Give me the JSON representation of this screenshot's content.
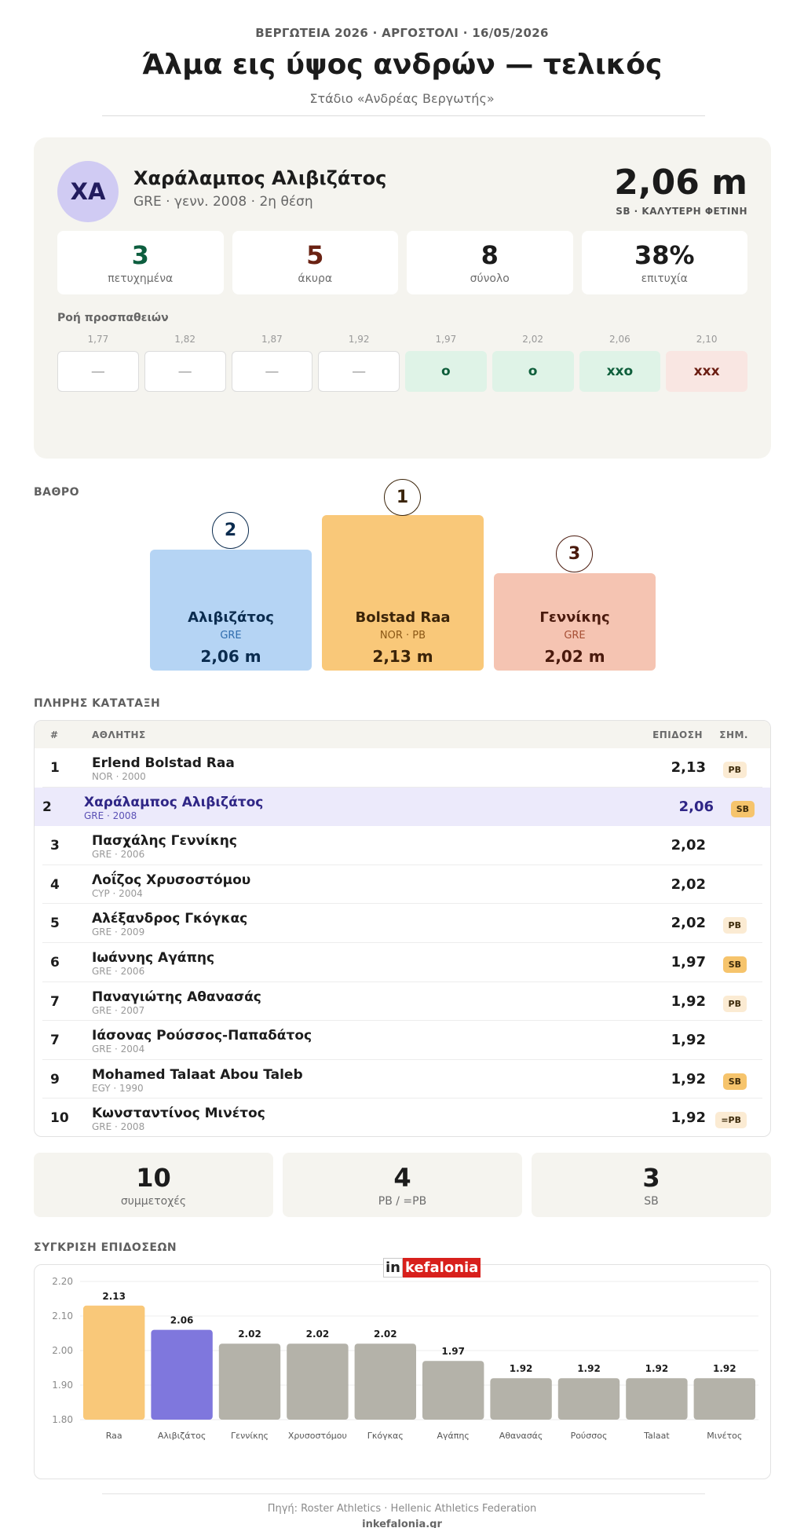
{
  "header": {
    "meta": "ΒΕΡΓΩΤΕΙΑ 2026  ·  ΑΡΓΟΣΤΟΛΙ  ·  16/05/2026",
    "title": "Άλμα εις ύψος ανδρών — τελικός",
    "subtitle": "Στάδιο «Ανδρέας Βεργωτής»"
  },
  "athlete": {
    "initials": "ΧΑ",
    "name": "Χαράλαμπος Αλιβιζάτος",
    "sub": "GRE  ·  γενν. 2008  ·  2η θέση",
    "best": "2,06 m",
    "best_label": "SB · ΚΑΛΥΤΕΡΗ ΦΕΤΙΝΗ",
    "stats": [
      {
        "num": "3",
        "label": "πετυχημένα",
        "color": "#0d5e3f"
      },
      {
        "num": "5",
        "label": "άκυρα",
        "color": "#6a2213"
      },
      {
        "num": "8",
        "label": "σύνολο",
        "color": "#1b1b1b"
      },
      {
        "num": "38%",
        "label": "επιτυχία",
        "color": "#1b1b1b"
      }
    ],
    "flow_title": "Ροή προσπαθειών",
    "flow": [
      {
        "height": "1,77",
        "result": "—",
        "kind": "pass"
      },
      {
        "height": "1,82",
        "result": "—",
        "kind": "pass"
      },
      {
        "height": "1,87",
        "result": "—",
        "kind": "pass"
      },
      {
        "height": "1,92",
        "result": "—",
        "kind": "pass"
      },
      {
        "height": "1,97",
        "result": "o",
        "kind": "ok"
      },
      {
        "height": "2,02",
        "result": "o",
        "kind": "ok"
      },
      {
        "height": "2,06",
        "result": "xxo",
        "kind": "ok"
      },
      {
        "height": "2,10",
        "result": "xxx",
        "kind": "fail"
      }
    ]
  },
  "podium": {
    "label": "ΒΑΘΡΟ",
    "places": [
      {
        "place": "2",
        "name": "Αλιβιζάτος",
        "nat": "GRE",
        "mark": "2,06 m",
        "bg": "#b5d4f4",
        "fg": "#0b2c4f",
        "sub": "#2f6cad"
      },
      {
        "place": "1",
        "name": "Bolstad Raa",
        "nat": "NOR · PB",
        "mark": "2,13 m",
        "bg": "#f9c879",
        "fg": "#3b2409",
        "sub": "#8a5715"
      },
      {
        "place": "3",
        "name": "Γεννίκης",
        "nat": "GRE",
        "mark": "2,02 m",
        "bg": "#f5c4b2",
        "fg": "#4a1a0d",
        "sub": "#a64f34"
      }
    ]
  },
  "standings": {
    "label": "ΠΛΗΡΗΣ ΚΑΤΑΤΑΞΗ",
    "columns": {
      "rank": "#",
      "athlete": "ΑΘΛΗΤΗΣ",
      "mark": "ΕΠΙΔΟΣΗ",
      "note": "ΣΗΜ."
    },
    "rows": [
      {
        "rank": "1",
        "name": "Erlend Bolstad Raa",
        "sub": "NOR · 2000",
        "mark": "2,13",
        "badge": "PB",
        "badge_kind": "pb",
        "highlight": false
      },
      {
        "rank": "2",
        "name": "Χαράλαμπος Αλιβιζάτος",
        "sub": "GRE · 2008",
        "mark": "2,06",
        "badge": "SB",
        "badge_kind": "sb",
        "highlight": true
      },
      {
        "rank": "3",
        "name": "Πασχάλης Γεννίκης",
        "sub": "GRE · 2006",
        "mark": "2,02",
        "badge": "",
        "badge_kind": "",
        "highlight": false
      },
      {
        "rank": "4",
        "name": "Λοΐζος Χρυσοστόμου",
        "sub": "CYP · 2004",
        "mark": "2,02",
        "badge": "",
        "badge_kind": "",
        "highlight": false
      },
      {
        "rank": "5",
        "name": "Αλέξανδρος Γκόγκας",
        "sub": "GRE · 2009",
        "mark": "2,02",
        "badge": "PB",
        "badge_kind": "pb",
        "highlight": false
      },
      {
        "rank": "6",
        "name": "Ιωάννης Αγάπης",
        "sub": "GRE · 2006",
        "mark": "1,97",
        "badge": "SB",
        "badge_kind": "sb",
        "highlight": false
      },
      {
        "rank": "7",
        "name": "Παναγιώτης Αθανασάς",
        "sub": "GRE · 2007",
        "mark": "1,92",
        "badge": "PB",
        "badge_kind": "pb",
        "highlight": false
      },
      {
        "rank": "7",
        "name": "Ιάσονας Ρούσσος-Παπαδάτος",
        "sub": "GRE · 2004",
        "mark": "1,92",
        "badge": "",
        "badge_kind": "",
        "highlight": false
      },
      {
        "rank": "9",
        "name": "Mohamed Talaat Abou Taleb",
        "sub": "EGY · 1990",
        "mark": "1,92",
        "badge": "SB",
        "badge_kind": "sb",
        "highlight": false
      },
      {
        "rank": "10",
        "name": "Κωνσταντίνος Μινέτος",
        "sub": "GRE · 2008",
        "mark": "1,92",
        "badge": "=PB",
        "badge_kind": "eqpb",
        "highlight": false
      }
    ]
  },
  "summary": [
    {
      "num": "10",
      "label": "συμμετοχές"
    },
    {
      "num": "4",
      "label": "PB / =PB"
    },
    {
      "num": "3",
      "label": "SB"
    }
  ],
  "comparison": {
    "label": "ΣΥΓΚΡΙΣΗ ΕΠΙΔΟΣΕΩΝ",
    "logo": {
      "in": "in",
      "brand": "kefalonia"
    }
  },
  "chart_data": {
    "type": "bar",
    "categories": [
      "Raa",
      "Αλιβιζάτος",
      "Γεννίκης",
      "Χρυσοστόμου",
      "Γκόγκας",
      "Αγάπης",
      "Αθανασάς",
      "Ρούσσος",
      "Talaat",
      "Μινέτος"
    ],
    "values": [
      2.13,
      2.06,
      2.02,
      2.02,
      2.02,
      1.97,
      1.92,
      1.92,
      1.92,
      1.92
    ],
    "value_labels": [
      "2.13",
      "2.06",
      "2.02",
      "2.02",
      "2.02",
      "1.97",
      "1.92",
      "1.92",
      "1.92",
      "1.92"
    ],
    "colors": [
      "#f9c879",
      "#7f77dd",
      "#b4b2a9",
      "#b4b2a9",
      "#b4b2a9",
      "#b4b2a9",
      "#b4b2a9",
      "#b4b2a9",
      "#b4b2a9",
      "#b4b2a9"
    ],
    "yticks": [
      "1.80",
      "1.90",
      "2.00",
      "2.10",
      "2.20"
    ],
    "ylim": [
      1.8,
      2.2
    ],
    "grid": true
  },
  "footer": {
    "source": "Πηγή: Roster Athletics  ·  Hellenic Athletics Federation",
    "site": "inkefalonia.gr"
  }
}
